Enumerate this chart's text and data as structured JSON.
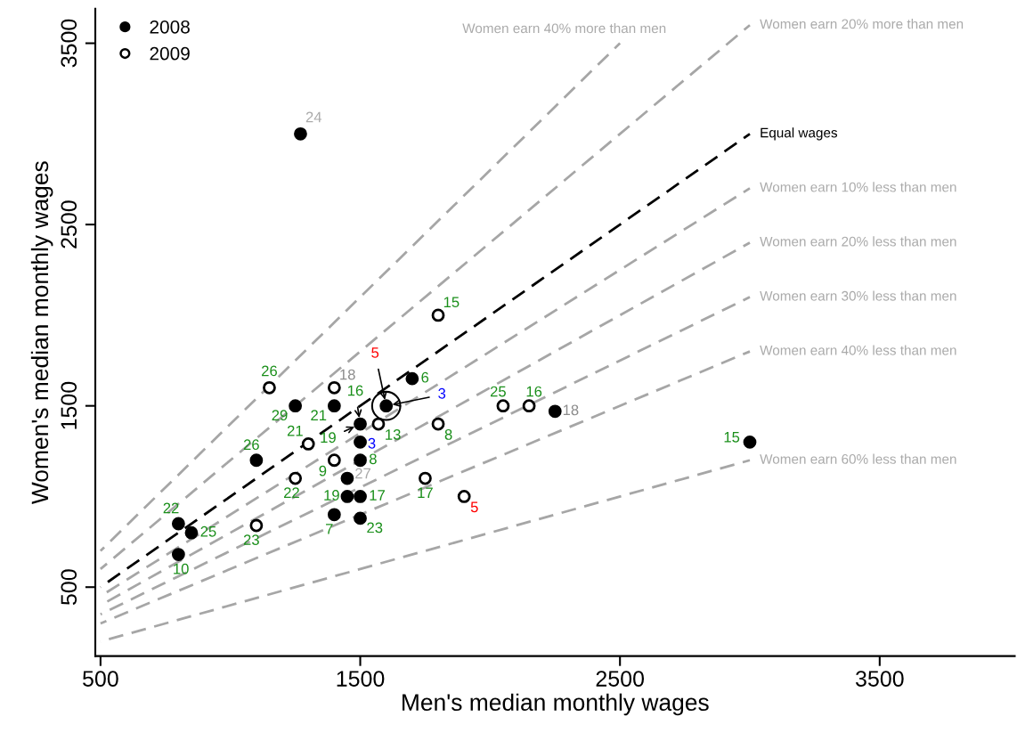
{
  "chart_data": {
    "type": "scatter",
    "xlabel": "Men's median monthly wages",
    "ylabel": "Women's median monthly wages",
    "xlim": [
      480,
      4020
    ],
    "ylim": [
      120,
      3690
    ],
    "xticks": [
      500,
      1500,
      2500,
      3500
    ],
    "yticks": [
      500,
      1500,
      2500,
      3500
    ],
    "legend": "top left",
    "marker": "circle",
    "line_style": "dashed",
    "series": [
      {
        "name": "2008",
        "color": "#000000",
        "x": [
          800,
          800,
          850,
          1100,
          1250,
          1400,
          1500,
          1500,
          1500,
          1450,
          1450,
          1500,
          1400,
          1500,
          1600,
          1700,
          2250,
          3000,
          1270
        ],
        "values": [
          850,
          680,
          800,
          1200,
          1500,
          1500,
          1400,
          1300,
          1200,
          1100,
          1000,
          1000,
          900,
          880,
          1500,
          1650,
          1470,
          1300,
          3000
        ]
      },
      {
        "name": "2009",
        "color": "#000000",
        "x": [
          1150,
          1400,
          1300,
          1400,
          1250,
          1100,
          1570,
          1800,
          1800,
          2050,
          2150,
          1750,
          1900
        ],
        "values": [
          1600,
          1600,
          1290,
          1200,
          1100,
          840,
          1400,
          1400,
          2000,
          1500,
          1500,
          1100,
          1000
        ]
      },
      {
        "type": "bubble",
        "color": "#000000",
        "x": [
          1600
        ],
        "values": [
          1500
        ],
        "sizes": [
          1
        ]
      },
      {
        "type": "line",
        "marker": "none",
        "name": "Women earn 40% more than men",
        "color": "#a6a6a6",
        "x": [
          500,
          2500
        ],
        "values": [
          700,
          3500
        ]
      },
      {
        "type": "line",
        "marker": "none",
        "name": "Women earn 20% more than men",
        "color": "#a6a6a6",
        "x": [
          500,
          3000
        ],
        "values": [
          600,
          3600
        ]
      },
      {
        "type": "line",
        "marker": "none",
        "name": "Equal wages",
        "color": "#000000",
        "x": [
          500,
          3000
        ],
        "values": [
          500,
          3000
        ]
      },
      {
        "type": "line",
        "marker": "none",
        "name": "Women earn 10% less than men",
        "color": "#a6a6a6",
        "x": [
          500,
          3000
        ],
        "values": [
          450,
          2700
        ]
      },
      {
        "type": "line",
        "marker": "none",
        "name": "Women earn 20% less than men",
        "color": "#a6a6a6",
        "x": [
          500,
          3000
        ],
        "values": [
          400,
          2400
        ]
      },
      {
        "type": "line",
        "marker": "none",
        "name": "Women earn 30% less than men",
        "color": "#a6a6a6",
        "x": [
          500,
          3000
        ],
        "values": [
          350,
          2100
        ]
      },
      {
        "type": "line",
        "marker": "none",
        "name": "Women earn 40% less than men",
        "color": "#a6a6a6",
        "x": [
          500,
          3000
        ],
        "values": [
          300,
          1800
        ]
      },
      {
        "type": "line",
        "marker": "none",
        "name": "Women earn 60% less than men",
        "color": "#a6a6a6",
        "x": [
          500,
          3000
        ],
        "values": [
          200,
          1200
        ]
      }
    ],
    "annotations": [
      {
        "text": "22",
        "x": 800,
        "y": 850
      },
      {
        "text": "10",
        "x": 800,
        "y": 680
      },
      {
        "text": "25",
        "x": 850,
        "y": 800
      },
      {
        "text": "26",
        "x": 1100,
        "y": 1200
      },
      {
        "text": "29",
        "x": 1250,
        "y": 1500
      },
      {
        "text": "21",
        "x": 1400,
        "y": 1500
      },
      {
        "text": "3",
        "x": 1500,
        "y": 1300
      },
      {
        "text": "8",
        "x": 1500,
        "y": 1200
      },
      {
        "text": "27",
        "x": 1450,
        "y": 1100
      },
      {
        "text": "19",
        "x": 1450,
        "y": 1000
      },
      {
        "text": "17",
        "x": 1500,
        "y": 1000
      },
      {
        "text": "7",
        "x": 1400,
        "y": 900
      },
      {
        "text": "23",
        "x": 1500,
        "y": 880
      },
      {
        "text": "6",
        "x": 1700,
        "y": 1650
      },
      {
        "text": "18",
        "x": 2250,
        "y": 1470
      },
      {
        "text": "15",
        "x": 3000,
        "y": 1300
      },
      {
        "text": "24",
        "x": 1270,
        "y": 3000
      },
      {
        "text": "26",
        "x": 1150,
        "y": 1600
      },
      {
        "text": "18",
        "x": 1400,
        "y": 1600
      },
      {
        "text": "21",
        "x": 1300,
        "y": 1290
      },
      {
        "text": "9",
        "x": 1400,
        "y": 1200
      },
      {
        "text": "22",
        "x": 1250,
        "y": 1100
      },
      {
        "text": "23",
        "x": 1100,
        "y": 840
      },
      {
        "text": "13",
        "x": 1570,
        "y": 1400
      },
      {
        "text": "8",
        "x": 1800,
        "y": 1400
      },
      {
        "text": "15",
        "x": 1800,
        "y": 2000
      },
      {
        "text": "25",
        "x": 2050,
        "y": 1500
      },
      {
        "text": "16",
        "x": 2150,
        "y": 1500
      },
      {
        "text": "17",
        "x": 1750,
        "y": 1100
      },
      {
        "text": "5",
        "x": 1900,
        "y": 1000
      },
      {
        "text": "5",
        "x": 1600,
        "y": 1500
      },
      {
        "text": "3",
        "x": 1600,
        "y": 1500
      },
      {
        "text": "16",
        "x": 1500,
        "y": 1400
      },
      {
        "text": "19",
        "x": 1500,
        "y": 1400
      }
    ]
  }
}
